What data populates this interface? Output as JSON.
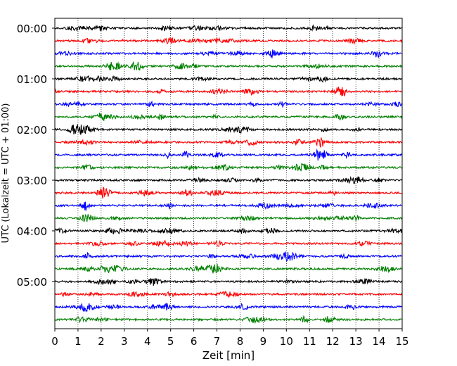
{
  "chart_data": {
    "type": "line",
    "title": "",
    "xlabel": "Zeit  [min]",
    "ylabel": "UTC (Lokalzeit = UTC + 01:00)",
    "xlim": [
      0,
      15
    ],
    "x_ticks": [
      0,
      1,
      2,
      3,
      4,
      5,
      6,
      7,
      8,
      9,
      10,
      11,
      12,
      13,
      14,
      15
    ],
    "x_tick_labels": [
      "0",
      "1",
      "2",
      "3",
      "4",
      "5",
      "6",
      "7",
      "8",
      "9",
      "10",
      "11",
      "12",
      "13",
      "14",
      "15"
    ],
    "y_tick_labels": [
      "00:00",
      "01:00",
      "02:00",
      "03:00",
      "04:00",
      "05:00"
    ],
    "trace_interval_min": 15,
    "trace_count": 24,
    "trace_colors": [
      "#000000",
      "#ff0000",
      "#0000ff",
      "#008000"
    ],
    "grid": {
      "x": true,
      "y": false,
      "style": "dotted"
    }
  }
}
